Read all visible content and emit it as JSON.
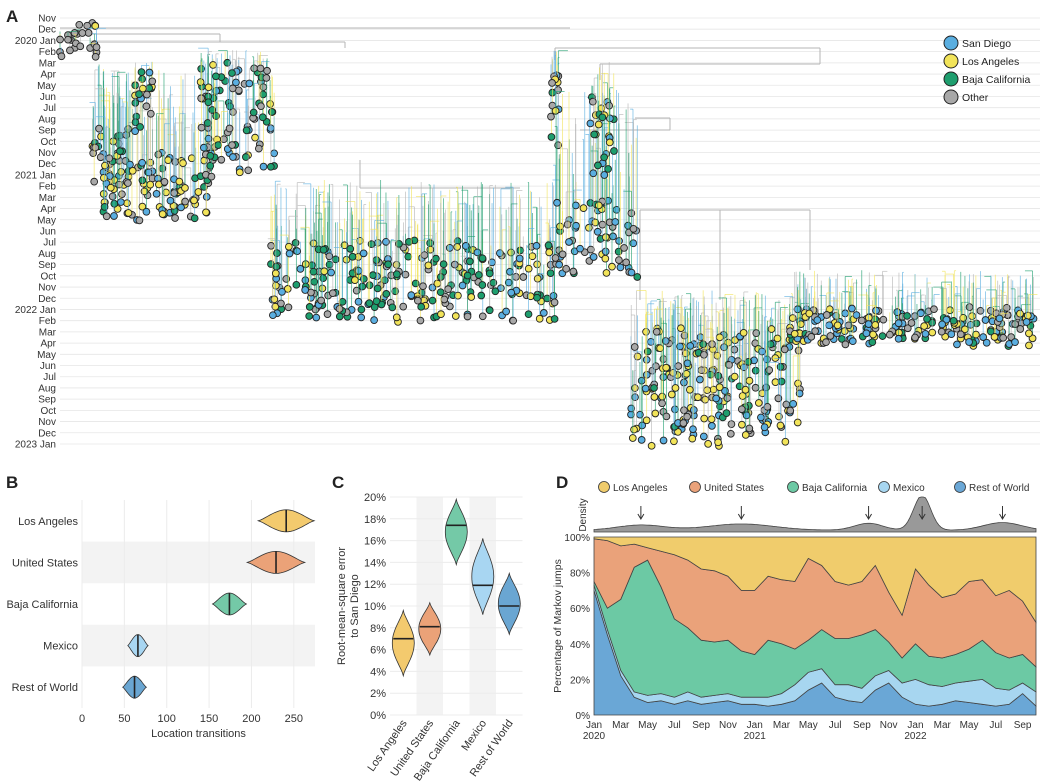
{
  "colors": {
    "san_diego": "#5aaee0",
    "los_angeles": "#f2e45a",
    "baja_california": "#1e9e6e",
    "other": "#a8a8a8",
    "la_area": "#f0cc6c",
    "us_area": "#eaa27a",
    "bc_area": "#6cc9a4",
    "mx_area": "#a7d6f0",
    "row_area": "#6aa7d6",
    "v_la": "#f3ca6e",
    "v_us": "#eba278",
    "v_bc": "#74c9a7",
    "v_mx": "#a8d6f2",
    "v_row": "#6aa6d2"
  },
  "panel_labels": {
    "a": "A",
    "b": "B",
    "c": "C",
    "d": "D"
  },
  "chart_data": [
    {
      "id": "A",
      "type": "scatter",
      "title": "",
      "time_axis_labels": [
        "Nov",
        "Dec",
        "2020 Jan",
        "Feb",
        "Mar",
        "Apr",
        "May",
        "Jun",
        "Jul",
        "Aug",
        "Sep",
        "Oct",
        "Nov",
        "Dec",
        "2021 Jan",
        "Feb",
        "Mar",
        "Apr",
        "May",
        "Jun",
        "Jul",
        "Aug",
        "Sep",
        "Oct",
        "Nov",
        "Dec",
        "2022 Jan",
        "Feb",
        "Mar",
        "Apr",
        "May",
        "Jun",
        "Jul",
        "Aug",
        "Sep",
        "Oct",
        "Nov",
        "Dec",
        "2023 Jan"
      ],
      "legend": [
        "San Diego",
        "Los Angeles",
        "Baja California",
        "Other"
      ],
      "legend_position": "top-right"
    },
    {
      "id": "B",
      "type": "violin",
      "categories": [
        "Los Angeles",
        "United States",
        "Baja California",
        "Mexico",
        "Rest of World"
      ],
      "medians": [
        241,
        229,
        174,
        66,
        62
      ],
      "spreads": [
        33,
        34,
        20,
        12,
        14
      ],
      "xlabel": "Location transitions",
      "xticks": [
        "0",
        "50",
        "100",
        "150",
        "200",
        "250"
      ],
      "xlim": [
        0,
        275
      ]
    },
    {
      "id": "C",
      "type": "violin",
      "categories": [
        "Los Angeles",
        "United States",
        "Baja California",
        "Mexico",
        "Rest of World"
      ],
      "medians": [
        7.0,
        8.1,
        17.4,
        11.9,
        10.0
      ],
      "ranges": [
        [
          3.6,
          9.6
        ],
        [
          5.5,
          10.3
        ],
        [
          13.8,
          19.8
        ],
        [
          9.2,
          16.2
        ],
        [
          7.4,
          13.0
        ]
      ],
      "ylabel": "Root-mean-square error\nto San Diego",
      "ylabel_lines": [
        "Root-mean-square error",
        "to San Diego"
      ],
      "yticks": [
        "0%",
        "2%",
        "4%",
        "6%",
        "8%",
        "10%",
        "12%",
        "14%",
        "16%",
        "18%",
        "20%"
      ],
      "ylim": [
        0,
        20
      ]
    },
    {
      "id": "D",
      "type": "area",
      "legend": [
        "Los Angeles",
        "United States",
        "Baja California",
        "Mexico",
        "Rest of World"
      ],
      "legend_position": "top",
      "density_label": "Density",
      "ylabel": "Percentage of Markov jumps",
      "yticks": [
        "0%",
        "20%",
        "40%",
        "60%",
        "80%",
        "100%"
      ],
      "xticks": [
        "Jan",
        "Mar",
        "May",
        "Jul",
        "Sep",
        "Nov",
        "Jan",
        "Mar",
        "May",
        "Jul",
        "Sep",
        "Nov",
        "Jan",
        "Mar",
        "May",
        "Jul",
        "Sep"
      ],
      "year_labels": [
        "2020",
        "2021",
        "2022"
      ],
      "x_months": [
        0,
        1,
        2,
        3,
        4,
        5,
        6,
        7,
        8,
        9,
        10,
        11,
        12,
        13,
        14,
        15,
        16,
        17,
        18,
        19,
        20,
        21,
        22,
        23,
        24,
        25,
        26,
        27,
        28,
        29,
        30,
        31,
        32,
        33
      ],
      "series": [
        {
          "name": "Rest of World",
          "values": [
            70,
            45,
            22,
            10,
            7,
            8,
            6,
            8,
            6,
            7,
            8,
            6,
            6,
            5,
            6,
            8,
            14,
            18,
            10,
            8,
            7,
            14,
            18,
            10,
            6,
            5,
            6,
            8,
            7,
            6,
            5,
            6,
            12,
            5
          ]
        },
        {
          "name": "Mexico",
          "values": [
            3,
            3,
            3,
            3,
            4,
            4,
            4,
            5,
            4,
            4,
            4,
            4,
            4,
            5,
            6,
            9,
            10,
            8,
            7,
            9,
            8,
            8,
            7,
            8,
            14,
            12,
            10,
            10,
            12,
            14,
            10,
            8,
            6,
            8
          ]
        },
        {
          "name": "Baja California",
          "values": [
            2,
            12,
            40,
            70,
            76,
            60,
            44,
            36,
            32,
            30,
            30,
            26,
            24,
            32,
            28,
            20,
            18,
            22,
            26,
            26,
            30,
            26,
            16,
            14,
            20,
            16,
            16,
            16,
            18,
            22,
            20,
            18,
            16,
            14
          ]
        },
        {
          "name": "United States",
          "values": [
            24,
            38,
            30,
            13,
            7,
            20,
            36,
            38,
            40,
            40,
            36,
            34,
            36,
            36,
            36,
            38,
            46,
            36,
            32,
            30,
            30,
            36,
            28,
            24,
            42,
            40,
            34,
            34,
            38,
            34,
            32,
            38,
            30,
            25
          ]
        },
        {
          "name": "Los Angeles",
          "values": [
            1,
            2,
            5,
            4,
            6,
            8,
            10,
            13,
            18,
            19,
            22,
            30,
            30,
            22,
            24,
            25,
            12,
            16,
            25,
            27,
            25,
            16,
            31,
            44,
            18,
            27,
            34,
            32,
            25,
            24,
            33,
            30,
            36,
            48
          ]
        }
      ],
      "density_peaks_months": [
        3.5,
        11,
        20.5,
        24.5,
        30.5
      ]
    }
  ]
}
